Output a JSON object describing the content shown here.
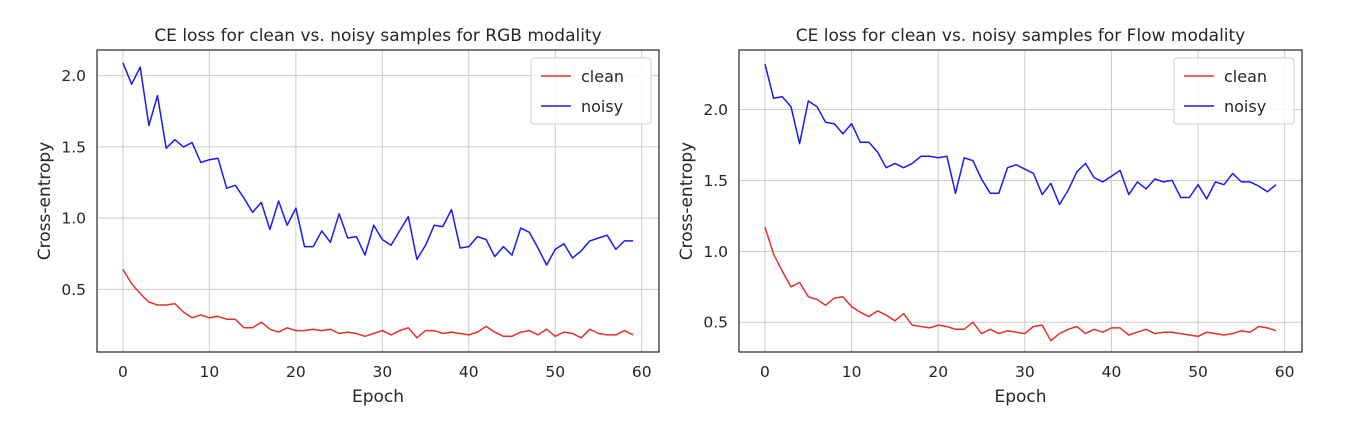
{
  "chart_data": [
    {
      "type": "line",
      "title": "CE loss for clean vs. noisy samples for RGB modality",
      "xlabel": "Epoch",
      "ylabel": "Cross-entropy",
      "xlim": [
        -3,
        62
      ],
      "ylim": [
        0.06,
        2.18
      ],
      "xticks": [
        0,
        10,
        20,
        30,
        40,
        50,
        60
      ],
      "yticks": [
        0.5,
        1.0,
        1.5,
        2.0
      ],
      "ytick_labels": [
        "0.5",
        "1.0",
        "1.5",
        "2.0"
      ],
      "grid": true,
      "legend_position": "top-right",
      "x": [
        0,
        1,
        2,
        3,
        4,
        5,
        6,
        7,
        8,
        9,
        10,
        11,
        12,
        13,
        14,
        15,
        16,
        17,
        18,
        19,
        20,
        21,
        22,
        23,
        24,
        25,
        26,
        27,
        28,
        29,
        30,
        31,
        32,
        33,
        34,
        35,
        36,
        37,
        38,
        39,
        40,
        41,
        42,
        43,
        44,
        45,
        46,
        47,
        48,
        49,
        50,
        51,
        52,
        53,
        54,
        55,
        56,
        57,
        58,
        59
      ],
      "series": [
        {
          "name": "clean",
          "color": "#e8302a",
          "values": [
            0.64,
            0.54,
            0.47,
            0.41,
            0.39,
            0.39,
            0.4,
            0.34,
            0.3,
            0.32,
            0.3,
            0.31,
            0.29,
            0.29,
            0.23,
            0.23,
            0.27,
            0.22,
            0.2,
            0.23,
            0.21,
            0.21,
            0.22,
            0.21,
            0.22,
            0.19,
            0.2,
            0.19,
            0.17,
            0.19,
            0.21,
            0.18,
            0.21,
            0.23,
            0.16,
            0.21,
            0.21,
            0.19,
            0.2,
            0.19,
            0.18,
            0.2,
            0.24,
            0.2,
            0.17,
            0.17,
            0.2,
            0.21,
            0.18,
            0.22,
            0.17,
            0.2,
            0.19,
            0.16,
            0.22,
            0.19,
            0.18,
            0.18,
            0.21,
            0.18
          ]
        },
        {
          "name": "noisy",
          "color": "#1b1bf0",
          "values": [
            2.09,
            1.94,
            2.06,
            1.65,
            1.86,
            1.49,
            1.55,
            1.5,
            1.53,
            1.39,
            1.41,
            1.42,
            1.21,
            1.23,
            1.14,
            1.04,
            1.11,
            0.92,
            1.12,
            0.95,
            1.07,
            0.8,
            0.8,
            0.91,
            0.83,
            1.03,
            0.86,
            0.87,
            0.74,
            0.95,
            0.85,
            0.81,
            0.91,
            1.01,
            0.71,
            0.81,
            0.95,
            0.94,
            1.06,
            0.79,
            0.8,
            0.87,
            0.85,
            0.73,
            0.8,
            0.74,
            0.93,
            0.9,
            0.79,
            0.67,
            0.78,
            0.82,
            0.72,
            0.77,
            0.84,
            0.86,
            0.88,
            0.78,
            0.84,
            0.84
          ]
        }
      ]
    },
    {
      "type": "line",
      "title": "CE loss for clean vs. noisy samples for Flow modality",
      "xlabel": "Epoch",
      "ylabel": "Cross-entropy",
      "xlim": [
        -3,
        62
      ],
      "ylim": [
        0.29,
        2.42
      ],
      "xticks": [
        0,
        10,
        20,
        30,
        40,
        50,
        60
      ],
      "yticks": [
        0.5,
        1.0,
        1.5,
        2.0
      ],
      "ytick_labels": [
        "0.5",
        "1.0",
        "1.5",
        "2.0"
      ],
      "grid": true,
      "legend_position": "top-right",
      "x": [
        0,
        1,
        2,
        3,
        4,
        5,
        6,
        7,
        8,
        9,
        10,
        11,
        12,
        13,
        14,
        15,
        16,
        17,
        18,
        19,
        20,
        21,
        22,
        23,
        24,
        25,
        26,
        27,
        28,
        29,
        30,
        31,
        32,
        33,
        34,
        35,
        36,
        37,
        38,
        39,
        40,
        41,
        42,
        43,
        44,
        45,
        46,
        47,
        48,
        49,
        50,
        51,
        52,
        53,
        54,
        55,
        56,
        57,
        58,
        59
      ],
      "series": [
        {
          "name": "clean",
          "color": "#e8302a",
          "values": [
            1.17,
            0.98,
            0.86,
            0.75,
            0.78,
            0.68,
            0.66,
            0.62,
            0.67,
            0.68,
            0.61,
            0.57,
            0.54,
            0.58,
            0.55,
            0.51,
            0.56,
            0.48,
            0.47,
            0.46,
            0.48,
            0.47,
            0.45,
            0.45,
            0.5,
            0.42,
            0.45,
            0.42,
            0.44,
            0.43,
            0.42,
            0.47,
            0.48,
            0.37,
            0.42,
            0.45,
            0.47,
            0.42,
            0.45,
            0.43,
            0.46,
            0.46,
            0.41,
            0.43,
            0.45,
            0.42,
            0.43,
            0.43,
            0.42,
            0.41,
            0.4,
            0.43,
            0.42,
            0.41,
            0.42,
            0.44,
            0.43,
            0.47,
            0.46,
            0.44
          ]
        },
        {
          "name": "noisy",
          "color": "#1b1bf0",
          "values": [
            2.32,
            2.08,
            2.09,
            2.02,
            1.76,
            2.06,
            2.02,
            1.91,
            1.9,
            1.83,
            1.9,
            1.77,
            1.77,
            1.7,
            1.59,
            1.62,
            1.59,
            1.62,
            1.67,
            1.67,
            1.66,
            1.67,
            1.41,
            1.66,
            1.64,
            1.51,
            1.41,
            1.41,
            1.59,
            1.61,
            1.58,
            1.55,
            1.4,
            1.48,
            1.33,
            1.43,
            1.56,
            1.62,
            1.52,
            1.49,
            1.53,
            1.57,
            1.4,
            1.49,
            1.44,
            1.51,
            1.49,
            1.5,
            1.38,
            1.38,
            1.47,
            1.37,
            1.49,
            1.47,
            1.55,
            1.49,
            1.49,
            1.46,
            1.42,
            1.47
          ]
        }
      ]
    }
  ]
}
